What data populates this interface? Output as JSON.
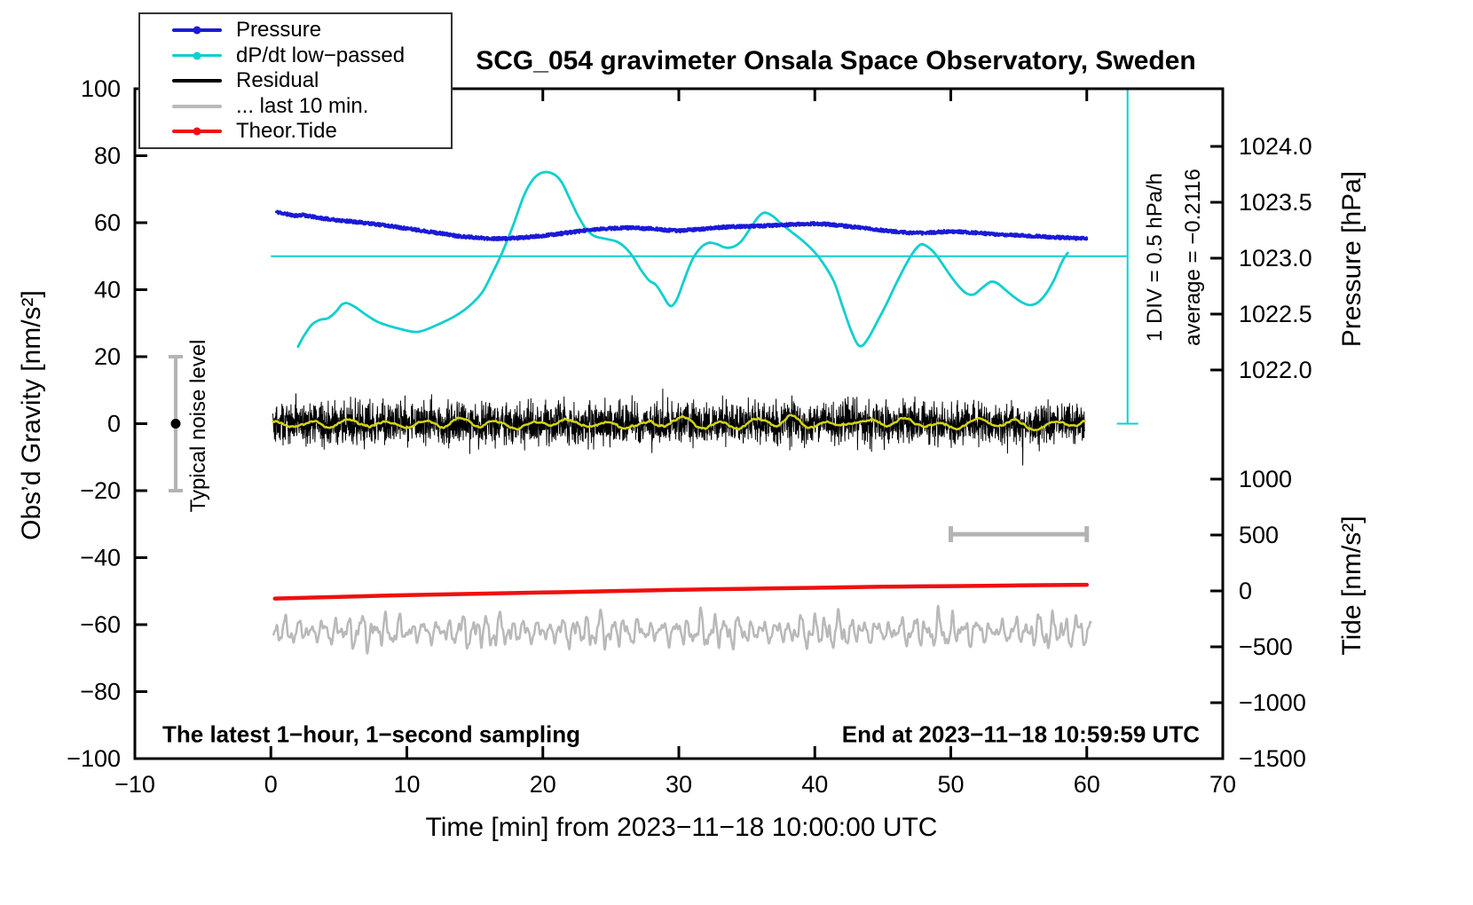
{
  "title": "SCG_054 gravimeter Onsala Space Observatory, Sweden",
  "legend": {
    "items": [
      {
        "id": "pressure",
        "label": "Pressure",
        "color": "#1a1ad8",
        "width": 4,
        "marker": true
      },
      {
        "id": "dpdt",
        "label": "dP/dt low−passed",
        "color": "#10cfcf",
        "width": 3,
        "marker": true
      },
      {
        "id": "residual",
        "label": "Residual",
        "color": "#000000",
        "width": 4,
        "marker": false
      },
      {
        "id": "last10min",
        "label": "... last 10 min.",
        "color": "#b9b9b9",
        "width": 4,
        "marker": false
      },
      {
        "id": "theor-tide",
        "label": "Theor.Tide",
        "color": "#ee1010",
        "width": 4,
        "marker": true
      }
    ]
  },
  "annotations": {
    "noise_label": "Typical noise level",
    "div_label": "1 DIV = 0.5 hPa/h",
    "average_label": "average = −0.2116",
    "bottom_left": "The latest 1−hour, 1−second sampling",
    "bottom_right": "End at 2023−11−18 10:59:59 UTC"
  },
  "chart_data": {
    "type": "line",
    "title": "SCG_054 gravimeter Onsala Space Observatory, Sweden",
    "xlabel": "Time [min] from 2023−11−18 10:00:00 UTC",
    "ylabel_left": "Obs’d Gravity [nm/s²]",
    "ylabel_pressure": "Pressure [hPa]",
    "ylabel_tide": "Tide [nm/s²]",
    "grid": false,
    "legend_position": "top-left",
    "x_range": [
      -10,
      70
    ],
    "y_left_range": [
      -100,
      100
    ],
    "pressure_range": [
      1022.0,
      1024.0
    ],
    "tide_range": [
      -1500,
      1000
    ],
    "x_ticks": {
      "values": [
        -10,
        0,
        10,
        20,
        30,
        40,
        50,
        60,
        70
      ],
      "labels": [
        "−10",
        "0",
        "10",
        "20",
        "30",
        "40",
        "50",
        "60",
        "70"
      ]
    },
    "y_left_ticks": {
      "values": [
        -100,
        -80,
        -60,
        -40,
        -20,
        0,
        20,
        40,
        60,
        80,
        100
      ],
      "labels": [
        "−100",
        "−80",
        "−60",
        "−40",
        "−20",
        "0",
        "20",
        "40",
        "60",
        "80",
        "100"
      ]
    },
    "pressure_ticks": {
      "values": [
        1024.0,
        1023.5,
        1023.0,
        1022.5,
        1022.0
      ],
      "labels": [
        "1024.0",
        "1023.5",
        "1023.0",
        "1022.5",
        "1022.0"
      ]
    },
    "tide_ticks": {
      "values": [
        1000,
        500,
        0,
        -500,
        -1000,
        -1500
      ],
      "labels": [
        "1000",
        "500",
        "0",
        "−500",
        "−1000",
        "−1500"
      ]
    },
    "colors": {
      "cyan": "#10cfcf",
      "gray": "#b4b4b4",
      "yellow": "#d2d210"
    },
    "reference_lines": {
      "horizontal": {
        "y": 50,
        "x_from": 0,
        "x_to": 63
      },
      "vertical": {
        "x": 63,
        "y_from": 0,
        "y_to": 100
      }
    },
    "noise_bar": {
      "x": -7,
      "y": 0,
      "half": 20
    },
    "scale_bar": {
      "x_from": 50,
      "x_to": 60,
      "y": -33
    },
    "series": [
      {
        "id": "last10min",
        "name": "Residual last 10 min",
        "style": "wave",
        "color": "#b9b9b9",
        "width": 2.5,
        "mean": -62,
        "x_start": 0.2,
        "x_end": 60.3,
        "dt": 0.03,
        "components": [
          [
            2.4,
            6.8,
            0.3
          ],
          [
            1.6,
            11.9,
            2.0
          ],
          [
            1.0,
            4.3,
            4.2
          ],
          [
            0.8,
            17.3,
            1.1
          ],
          [
            0.6,
            29.1,
            0.5
          ]
        ],
        "envelope": [
          0.3,
          0.75,
          2.4
        ]
      },
      {
        "id": "theor-tide",
        "name": "Theor.Tide",
        "style": "smooth",
        "color": "#ee1010",
        "width": 4.5,
        "pairs": [
          [
            0.3,
            -52.2
          ],
          [
            5,
            -51.7
          ],
          [
            10,
            -51.2
          ],
          [
            15,
            -50.8
          ],
          [
            20,
            -50.4
          ],
          [
            25,
            -50.0
          ],
          [
            30,
            -49.6
          ],
          [
            35,
            -49.3
          ],
          [
            40,
            -49.0
          ],
          [
            45,
            -48.7
          ],
          [
            50,
            -48.5
          ],
          [
            55,
            -48.3
          ],
          [
            60,
            -48.1
          ]
        ]
      },
      {
        "id": "residual",
        "name": "Residual",
        "style": "noise",
        "color": "#000000",
        "width": 1,
        "x_start": 0.15,
        "x_end": 59.85,
        "dt": 0.0166,
        "mean": 0,
        "sigma": 3.2,
        "spike_prob": 0.015,
        "spike_scale": 1.6,
        "seed": 42,
        "ma": {
          "color": "#d2d210",
          "width": 2.5,
          "window": 30,
          "wiggle": [
            [
              0.9,
              2.3,
              1.0
            ],
            [
              0.6,
              0.8,
              3.0
            ]
          ]
        }
      },
      {
        "id": "dpdt",
        "name": "dP/dt low-passed",
        "style": "smooth",
        "color": "#10cfcf",
        "width": 2.8,
        "pairs": [
          [
            2.0,
            23.0
          ],
          [
            2.4,
            26.0
          ],
          [
            3.0,
            29.5
          ],
          [
            3.6,
            31.0
          ],
          [
            4.2,
            31.5
          ],
          [
            4.8,
            33.5
          ],
          [
            5.2,
            35.5
          ],
          [
            5.6,
            36.0
          ],
          [
            6.2,
            34.8
          ],
          [
            7.0,
            32.5
          ],
          [
            7.8,
            30.5
          ],
          [
            8.6,
            29.3
          ],
          [
            9.4,
            28.4
          ],
          [
            10.2,
            27.6
          ],
          [
            10.8,
            27.4
          ],
          [
            11.5,
            28.2
          ],
          [
            12.5,
            30.0
          ],
          [
            13.5,
            32.0
          ],
          [
            14.5,
            34.8
          ],
          [
            15.5,
            39.0
          ],
          [
            16.3,
            45.0
          ],
          [
            17.0,
            51.0
          ],
          [
            17.8,
            59.0
          ],
          [
            18.6,
            68.0
          ],
          [
            19.3,
            73.0
          ],
          [
            20.0,
            75.0
          ],
          [
            20.8,
            74.5
          ],
          [
            21.4,
            72.0
          ],
          [
            22.0,
            67.0
          ],
          [
            22.6,
            62.0
          ],
          [
            23.2,
            58.0
          ],
          [
            23.8,
            56.0
          ],
          [
            24.6,
            55.2
          ],
          [
            25.4,
            54.4
          ],
          [
            26.0,
            52.8
          ],
          [
            26.6,
            50.0
          ],
          [
            27.2,
            46.0
          ],
          [
            27.8,
            42.8
          ],
          [
            28.3,
            41.5
          ],
          [
            28.8,
            38.5
          ],
          [
            29.2,
            35.8
          ],
          [
            29.5,
            35.2
          ],
          [
            29.9,
            37.5
          ],
          [
            30.4,
            43.0
          ],
          [
            31.0,
            49.0
          ],
          [
            31.6,
            52.5
          ],
          [
            32.2,
            54.0
          ],
          [
            32.8,
            53.6
          ],
          [
            33.4,
            52.6
          ],
          [
            34.0,
            52.8
          ],
          [
            34.6,
            54.5
          ],
          [
            35.2,
            58.0
          ],
          [
            35.8,
            61.5
          ],
          [
            36.3,
            63.0
          ],
          [
            36.9,
            62.0
          ],
          [
            37.5,
            59.8
          ],
          [
            38.2,
            57.5
          ],
          [
            39.0,
            55.0
          ],
          [
            39.8,
            52.0
          ],
          [
            40.6,
            48.0
          ],
          [
            41.4,
            42.5
          ],
          [
            42.0,
            35.5
          ],
          [
            42.6,
            28.5
          ],
          [
            43.1,
            24.0
          ],
          [
            43.5,
            23.3
          ],
          [
            44.0,
            26.0
          ],
          [
            44.6,
            30.5
          ],
          [
            45.3,
            36.0
          ],
          [
            46.0,
            42.0
          ],
          [
            46.7,
            47.5
          ],
          [
            47.3,
            51.5
          ],
          [
            47.8,
            53.5
          ],
          [
            48.3,
            52.8
          ],
          [
            48.9,
            50.5
          ],
          [
            49.5,
            47.0
          ],
          [
            50.1,
            43.5
          ],
          [
            50.7,
            40.5
          ],
          [
            51.2,
            38.8
          ],
          [
            51.7,
            38.6
          ],
          [
            52.3,
            40.5
          ],
          [
            52.9,
            42.3
          ],
          [
            53.4,
            42.0
          ],
          [
            54.0,
            40.0
          ],
          [
            54.6,
            38.0
          ],
          [
            55.2,
            36.3
          ],
          [
            55.8,
            35.4
          ],
          [
            56.4,
            36.2
          ],
          [
            57.0,
            38.8
          ],
          [
            57.6,
            43.0
          ],
          [
            58.2,
            48.5
          ],
          [
            58.6,
            51.0
          ]
        ]
      },
      {
        "id": "pressure",
        "name": "Pressure",
        "style": "jitter-line",
        "color": "#1a1ad8",
        "width": 3,
        "jitter": 0.45,
        "dt": 0.025,
        "seed": 11,
        "pairs": [
          [
            0.4,
            63.2
          ],
          [
            1,
            62.7
          ],
          [
            1.8,
            62.1
          ],
          [
            2.4,
            62.3
          ],
          [
            3,
            61.8
          ],
          [
            4,
            61.2
          ],
          [
            5,
            60.7
          ],
          [
            6,
            60.3
          ],
          [
            7,
            59.9
          ],
          [
            8,
            59.4
          ],
          [
            9,
            58.9
          ],
          [
            10,
            58.3
          ],
          [
            11,
            57.7
          ],
          [
            12,
            57.1
          ],
          [
            13,
            56.5
          ],
          [
            14,
            55.9
          ],
          [
            15,
            55.6
          ],
          [
            16,
            55.3
          ],
          [
            17,
            55.2
          ],
          [
            18,
            55.4
          ],
          [
            19,
            55.7
          ],
          [
            20,
            56.1
          ],
          [
            21,
            56.6
          ],
          [
            22,
            57.1
          ],
          [
            23,
            57.6
          ],
          [
            24,
            58.0
          ],
          [
            25,
            58.3
          ],
          [
            26,
            58.5
          ],
          [
            27,
            58.4
          ],
          [
            28,
            58.2
          ],
          [
            29,
            57.8
          ],
          [
            30,
            57.6
          ],
          [
            31,
            57.9
          ],
          [
            32,
            58.2
          ],
          [
            33,
            58.6
          ],
          [
            34,
            58.8
          ],
          [
            35,
            58.9
          ],
          [
            36,
            59.0
          ],
          [
            37,
            59.2
          ],
          [
            38,
            59.4
          ],
          [
            39,
            59.6
          ],
          [
            40,
            59.7
          ],
          [
            41,
            59.5
          ],
          [
            42,
            59.1
          ],
          [
            43,
            58.7
          ],
          [
            44,
            58.2
          ],
          [
            45,
            57.7
          ],
          [
            46,
            57.3
          ],
          [
            47,
            57.0
          ],
          [
            48,
            56.9
          ],
          [
            49,
            57.2
          ],
          [
            50,
            57.4
          ],
          [
            51,
            57.2
          ],
          [
            52,
            56.9
          ],
          [
            53,
            56.6
          ],
          [
            54,
            56.4
          ],
          [
            55,
            56.2
          ],
          [
            56,
            56.0
          ],
          [
            57,
            55.8
          ],
          [
            58,
            55.6
          ],
          [
            59,
            55.4
          ],
          [
            60,
            55.2
          ]
        ]
      }
    ]
  }
}
